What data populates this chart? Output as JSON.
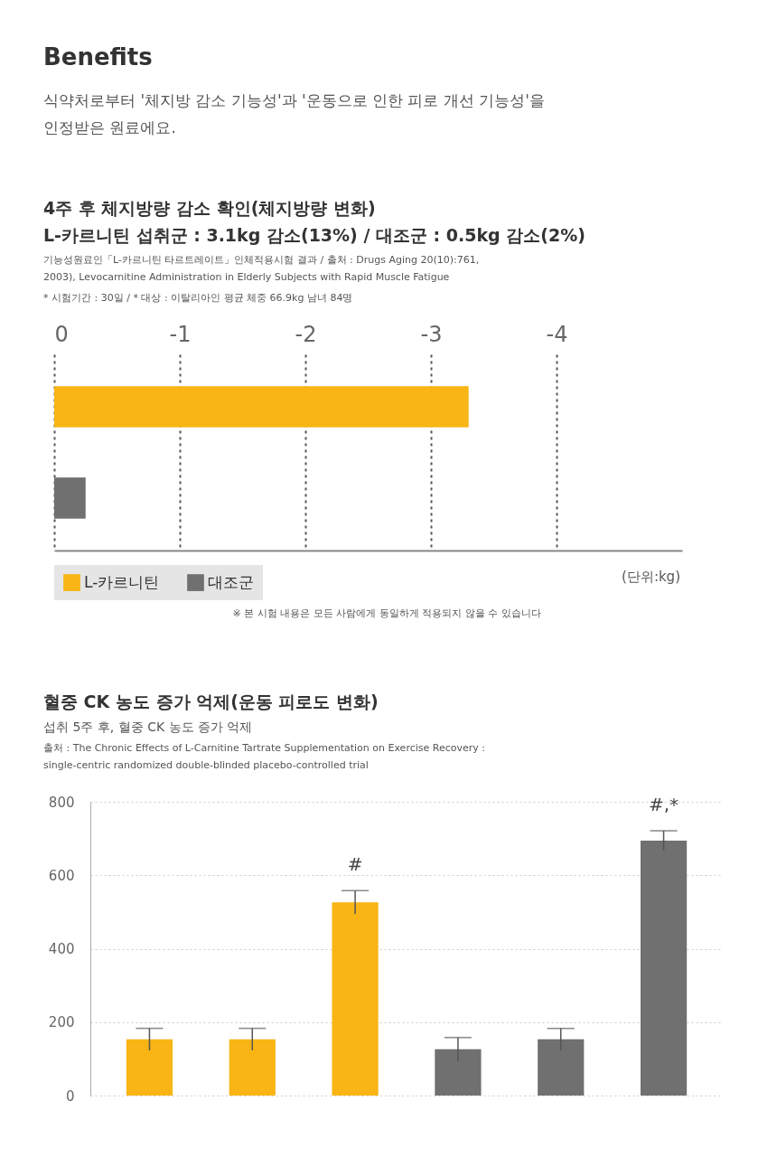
{
  "chart_data": [
    {
      "type": "other",
      "title": "Benefits",
      "annotations": [
        "식약처로부터 '체지방 감소 기능성'과 '운동으로 인한 피로 개선 기능성'을 인정받은 원료에요."
      ]
    },
    {
      "type": "bar",
      "orientation": "horizontal",
      "title": "4주 후 체지방량 감소 확인(체지방량 변화)",
      "subtitle": "L-카르니틴 섭취군 : 3.1kg 감소(13%) / 대조군 : 0.5kg 감소(2%)",
      "xlabel": "(단위:kg)",
      "annotations": [
        "기능성원료인「L-카르니틴 타르트레이트」인체적용시험 결과 / 출처 : Drugs Aging 20(10):761, 2003), Levocarnitine Administration in Elderly Subjects with Rapid Muscle Fatigue",
        "* 시험기간 : 30일 / * 대상 : 이탈리아인 평균 체중 66.9kg 남녀 84명",
        "※ 본 시험 내용은 모든 사람에게 동일하게 적용되지 않을 수 있습니다"
      ],
      "categories": [
        null,
        null
      ],
      "series": [
        {
          "name": "L-카르니틴",
          "color": "#f8b515",
          "values": [
            -3.3,
            null
          ]
        },
        {
          "name": "대조군",
          "color": "#717071",
          "values": [
            null,
            -0.25
          ]
        }
      ],
      "xlim": [
        0,
        -5
      ],
      "xticks": [
        0,
        -1,
        -2,
        -3,
        -4
      ],
      "grid": "x",
      "legend": "bottom"
    },
    {
      "type": "bar",
      "title": "혈중 CK 농도 증가 억제(운동 피로도 변화)",
      "subtitle": "섭취 5주 후, 혈중 CK 농도 증가 억제",
      "annotations": [
        "출처 : The Chronic Effects of L-Carnitine Tartrate Supplementation on Exercise Recovery : single-centric randomized double-blinded placebo-controlled trial"
      ],
      "categories": [
        null,
        null,
        null,
        null,
        null,
        null
      ],
      "values": [
        153,
        153,
        526,
        126,
        153,
        694
      ],
      "colors": [
        "#f8b515",
        "#f8b515",
        "#f8b515",
        "#717071",
        "#717071",
        "#717071"
      ],
      "errors": [
        30,
        30,
        32,
        32,
        30,
        27
      ],
      "value_labels": [
        null,
        null,
        "#",
        null,
        null,
        "#,*"
      ],
      "ylim": [
        0,
        800
      ],
      "yticks": [
        0,
        200,
        400,
        600,
        800
      ],
      "grid": "y"
    }
  ]
}
